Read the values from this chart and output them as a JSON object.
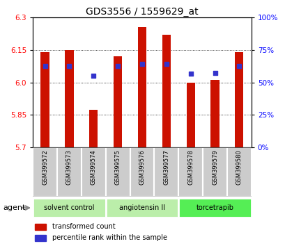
{
  "title": "GDS3556 / 1559629_at",
  "samples": [
    "GSM399572",
    "GSM399573",
    "GSM399574",
    "GSM399575",
    "GSM399576",
    "GSM399577",
    "GSM399578",
    "GSM399579",
    "GSM399580"
  ],
  "bar_values": [
    6.14,
    6.15,
    5.875,
    6.12,
    6.255,
    6.22,
    6.0,
    6.01,
    6.14
  ],
  "dot_values": [
    6.075,
    6.075,
    6.03,
    6.075,
    6.085,
    6.085,
    6.04,
    6.045,
    6.075
  ],
  "ymin": 5.7,
  "ymax": 6.3,
  "yticks_left": [
    5.7,
    5.85,
    6.0,
    6.15,
    6.3
  ],
  "yticks_right": [
    0,
    25,
    50,
    75,
    100
  ],
  "bar_color": "#cc1100",
  "dot_color": "#3333cc",
  "groups": [
    {
      "label": "solvent control",
      "start": 0,
      "end": 3,
      "color": "#bbeeaa"
    },
    {
      "label": "angiotensin II",
      "start": 3,
      "end": 6,
      "color": "#bbeeaa"
    },
    {
      "label": "torcetrapib",
      "start": 6,
      "end": 9,
      "color": "#55ee55"
    }
  ],
  "agent_label": "agent",
  "legend_items": [
    {
      "color": "#cc1100",
      "label": "transformed count"
    },
    {
      "color": "#3333cc",
      "label": "percentile rank within the sample"
    }
  ],
  "title_fontsize": 10,
  "tick_fontsize": 7.5,
  "sample_fontsize": 6,
  "group_fontsize": 7,
  "legend_fontsize": 7,
  "bg_color": "#ffffff",
  "plot_bg_color": "#ffffff",
  "sample_box_color": "#cccccc",
  "bar_width": 0.35
}
